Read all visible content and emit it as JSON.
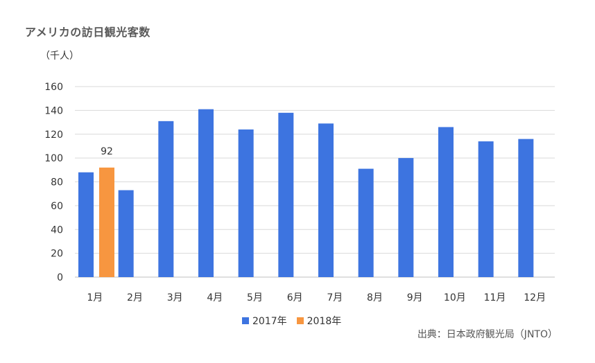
{
  "title": "アメリカの訪日観光客数",
  "source": "出典：日本政府観光局（JNTO）",
  "chart_data": {
    "type": "bar",
    "title": "アメリカの訪日観光客数",
    "ylabel": "（千人）",
    "xlabel": "",
    "ylim": [
      0,
      160
    ],
    "yticks": [
      0,
      20,
      40,
      60,
      80,
      100,
      120,
      140,
      160
    ],
    "grid": true,
    "legend_position": "bottom",
    "categories": [
      "1月",
      "2月",
      "3月",
      "4月",
      "5月",
      "6月",
      "7月",
      "8月",
      "9月",
      "10月",
      "11月",
      "12月"
    ],
    "series": [
      {
        "name": "2017年",
        "color": "#3d74e0",
        "values": [
          88,
          73,
          131,
          141,
          124,
          138,
          129,
          91,
          100,
          126,
          114,
          116
        ]
      },
      {
        "name": "2018年",
        "color": "#f79640",
        "values": [
          92,
          null,
          null,
          null,
          null,
          null,
          null,
          null,
          null,
          null,
          null,
          null
        ],
        "data_labels": [
          "92",
          null,
          null,
          null,
          null,
          null,
          null,
          null,
          null,
          null,
          null,
          null
        ]
      }
    ]
  }
}
